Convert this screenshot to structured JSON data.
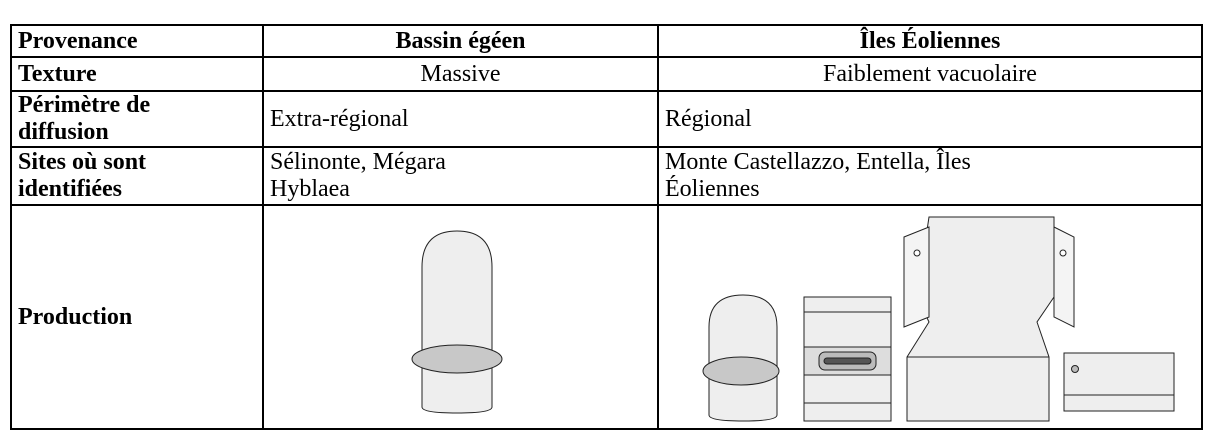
{
  "table": {
    "header": [
      "Provenance",
      "Bassin égéen",
      "Îles Éoliennes"
    ],
    "rows": [
      [
        "Texture",
        "Massive",
        "Faiblement vacuolaire"
      ],
      [
        [
          "Périmètre de",
          "diffusion"
        ],
        "Extra-régional",
        "Régional"
      ],
      [
        [
          "Sites où sont",
          "identifiées"
        ],
        [
          "Sélinonte, Mégara",
          "Hyblaea"
        ],
        [
          "Monte Castellazzo, Entella, Îles",
          "Éoliennes"
        ]
      ],
      [
        "Production"
      ]
    ]
  }
}
